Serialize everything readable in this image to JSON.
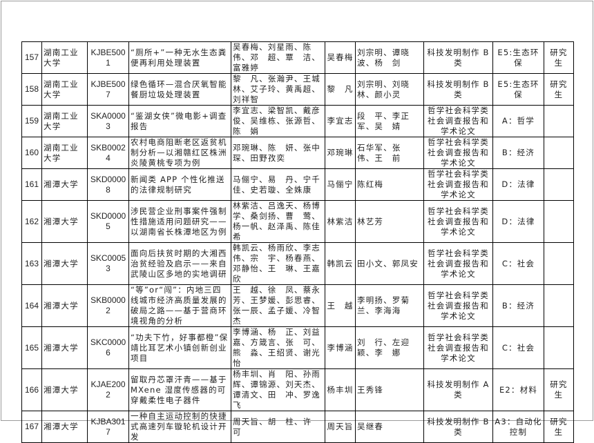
{
  "rows": [
    {
      "no": "157",
      "school": "湖南工业大学",
      "code": "KJBE5001",
      "title": "“厕所+”一种无水生态粪便再利用处理装置",
      "members": "吴春梅、刘星雨、陈　伟、邓　超、覃　洁、富雅婷",
      "leader": "吴春梅",
      "advisors": "刘宗明、谭晓波、杨　剑",
      "category": "科技发明制作 B 类",
      "subcategory": "E5:生态环保",
      "level": "研究生"
    },
    {
      "no": "158",
      "school": "湖南工业大学",
      "code": "KJBE5007",
      "title": "绿色循环—混合厌氧智能餐厨垃圾处理装置",
      "members": "黎　凡、张瀚尹、王城林、艾子玲、黄禹超、刘祥智",
      "leader": "黎　凡",
      "advisors": "刘宗明、刘晓林、颜小灵",
      "category": "科技发明制作 B 类",
      "subcategory": "E5:生态环保",
      "level": "研究生"
    },
    {
      "no": "159",
      "school": "湖南工业大学",
      "code": "SKA00003",
      "title": "“鉴湖女侠”微电影+调查报告",
      "members": "李宜志、梁智凯、戴彦俊、吴维栋、张源哲、陈　娟",
      "leader": "李宜志",
      "advisors": "段　平、李正军、吴　婧",
      "category": "哲学社会科学类社会调查报告和学术论文",
      "subcategory": "A：哲学",
      "level": ""
    },
    {
      "no": "160",
      "school": "湖南工业大学",
      "code": "SKB00024",
      "title": "农村电商阻断老区返贫机制分析—以湘赣红区株洲炎陵黄桃专项为例",
      "members": "邓琬琳、陈　妍、张中琛、田野孜奕",
      "leader": "邓琬琳",
      "advisors": "石华军、张　伟、王　前",
      "category": "哲学社会科学类社会调查报告和学术论文",
      "subcategory": "B：经济",
      "level": ""
    },
    {
      "no": "161",
      "school": "湘潭大学",
      "code": "SKD00008",
      "title": "新闻类 APP 个性化推送的法律规制研究",
      "members": "马俪宁、易　丹、宁千佳、史若璇、全姝康",
      "leader": "马俪宁",
      "advisors": "陈红梅",
      "category": "哲学社会科学类社会调查报告和学术论文",
      "subcategory": "D：法律",
      "level": ""
    },
    {
      "no": "162",
      "school": "湘潭大学",
      "code": "SKD00005",
      "title": "涉民营企业刑事案件强制性措施适用问题研究——以湖南省长株潭地区为例",
      "members": "林紫洁、吕逸天、杨博学、桑剑扬、曹　莺、杨一帆、赵泽禹、陈佳希",
      "leader": "林紫洁",
      "advisors": "林艺芳",
      "category": "哲学社会科学类社会调查报告和学术论文",
      "subcategory": "D：法律",
      "level": ""
    },
    {
      "no": "163",
      "school": "湘潭大学",
      "code": "SKC00053",
      "title": "面向后扶贫时期的大湘西治贫经验及启示——来自武陵山区多地的实地调研",
      "members": "韩凯云、杨雨欣、李志伟、宗　宇、杨春燕、邓静怡、王　琳、王嘉欣",
      "leader": "韩凯云",
      "advisors": "田小文、郭凤安",
      "category": "哲学社会科学类社会调查报告和学术论文",
      "subcategory": "C：社会",
      "level": ""
    },
    {
      "no": "164",
      "school": "湘潭大学",
      "code": "SKB00002",
      "title": "“等”or“闯”：内地三四线城市经济高质量发展的破局之路——基于营商环境视角的分析",
      "members": "王　越、徐　凤、蔡永芳、王梦媛、彭思睿、张一辰、孟子媛、冷智杰",
      "leader": "王　越",
      "advisors": "李明扬、罗菊兰、李海海",
      "category": "哲学社会科学类社会调查报告和学术论文",
      "subcategory": "B：经济",
      "level": ""
    },
    {
      "no": "165",
      "school": "湘潭大学",
      "code": "SKC00006",
      "title": "“功夫下竹，好事都橙”保靖比耳艺术小镇创新创业项目",
      "members": "李博涵、杨　正、刘益嘉、方箴言、张　可、熊　淼、王绍贤、谢光怡",
      "leader": "李博涵",
      "advisors": "刘　行、左迎颖、李　娜",
      "category": "哲学社会科学类社会调查报告和学术论文",
      "subcategory": "C：社会",
      "level": ""
    },
    {
      "no": "166",
      "school": "湘潭大学",
      "code": "KJAE2002",
      "title": "留取丹芯罩汗青——基于 MXene 湿度传感器的可穿戴柔性电子器件",
      "members": "杨丰圳、肖　阳、孙雨辉、谭锦源、刘天杰、谭清文、田　冲、罗逸飞",
      "leader": "杨丰圳",
      "advisors": "王秀锋",
      "category": "科技发明制作 A 类",
      "subcategory": "E2：材料",
      "level": "研究生"
    },
    {
      "no": "167",
      "school": "湘潭大学",
      "code": "KJBA3017",
      "title": "一种自主运动控制的快捷式高速列车镟轮机设计开发",
      "members": "周天旨、胡　柱、许　可",
      "leader": "周天旨",
      "advisors": "吴继春",
      "category": "科技发明制作 B 类",
      "subcategory": "A3：自动化控制",
      "level": "研究生"
    }
  ]
}
